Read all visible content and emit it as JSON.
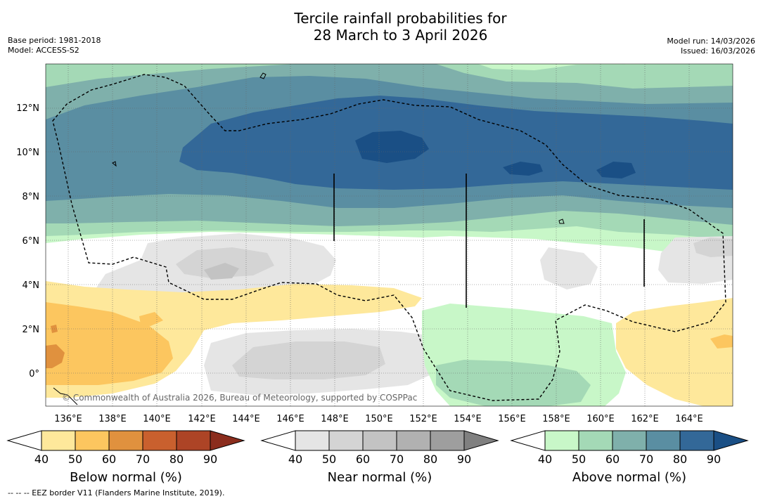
{
  "title": {
    "line1": "Tercile rainfall probabilities for",
    "line2": "28 March to 3 April 2026"
  },
  "meta": {
    "base_period": "Base period: 1981-2018",
    "model": "Model: ACCESS-S2",
    "model_run": "Model run: 14/03/2026",
    "issued": "Issued: 16/03/2026"
  },
  "map": {
    "lat_labels": [
      "12°N",
      "10°N",
      "8°N",
      "6°N",
      "4°N",
      "2°N",
      "0°"
    ],
    "lon_labels": [
      "136°E",
      "138°E",
      "140°E",
      "142°E",
      "144°E",
      "146°E",
      "148°E",
      "150°E",
      "152°E",
      "154°E",
      "156°E",
      "158°E",
      "160°E",
      "162°E",
      "164°E"
    ],
    "copyright": "© Commonwealth of Australia 2026, Bureau of Meteorology, supported by COSPPac"
  },
  "colorbars": [
    {
      "label": "Below normal (%)",
      "ticks": [
        "40",
        "50",
        "60",
        "70",
        "80",
        "90"
      ],
      "colors": [
        "#ffffff",
        "#fee89b",
        "#fcc65f",
        "#e0913e",
        "#c9602e",
        "#ad4426",
        "#8b2d1d"
      ]
    },
    {
      "label": "Near normal (%)",
      "ticks": [
        "40",
        "50",
        "60",
        "70",
        "80",
        "90"
      ],
      "colors": [
        "#ffffff",
        "#e5e5e5",
        "#d4d4d4",
        "#c3c3c3",
        "#b1b1b1",
        "#9e9e9e",
        "#808080"
      ]
    },
    {
      "label": "Above normal (%)",
      "ticks": [
        "40",
        "50",
        "60",
        "70",
        "80",
        "90"
      ],
      "colors": [
        "#ffffff",
        "#c8f7c8",
        "#a4d9b6",
        "#7fb0ab",
        "#5a8ea2",
        "#336898",
        "#1a4f85"
      ]
    }
  ],
  "footer": "--  --  -- EEZ border V11 (Flanders Marine Institute, 2019)."
}
